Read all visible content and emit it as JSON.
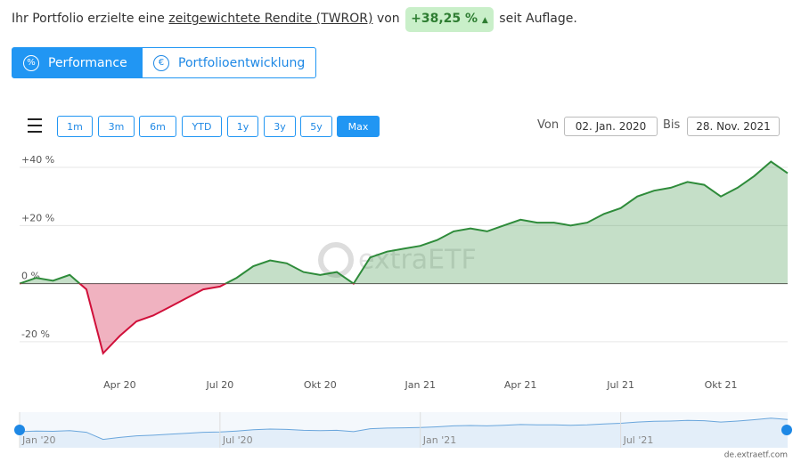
{
  "header": {
    "text_before": "Ihr Portfolio erzielte eine",
    "link": "zeitgewichtete Rendite (TWROR)",
    "text_mid": "von",
    "return": "+38,25 %",
    "text_after": "seit Auflage."
  },
  "tabs": [
    "Performance",
    "Portfolioentwicklung"
  ],
  "range_buttons": [
    "1m",
    "3m",
    "6m",
    "YTD",
    "1y",
    "3y",
    "5y",
    "Max"
  ],
  "date_range": {
    "from_label": "Von",
    "from": "02. Jan. 2020",
    "to_label": "Bis",
    "to": "28. Nov. 2021"
  },
  "watermark": "extraETF",
  "credit": "de.extraetf.com",
  "navigator": {
    "labels": [
      "Jan '20",
      "Jul '20",
      "Jan '21",
      "Jul '21"
    ]
  },
  "chart_data": {
    "type": "area",
    "categories": [
      null,
      null,
      null,
      null,
      null,
      null,
      "Apr 20",
      null,
      null,
      null,
      null,
      null,
      "Jul 20",
      null,
      null,
      null,
      null,
      null,
      "Okt 20",
      null,
      null,
      null,
      null,
      null,
      "Jan 21",
      null,
      null,
      null,
      null,
      null,
      "Apr 21",
      null,
      null,
      null,
      null,
      null,
      "Jul 21",
      null,
      null,
      null,
      null,
      null,
      "Okt 21",
      null,
      null,
      null,
      null
    ],
    "values": [
      0,
      2,
      1,
      3,
      -2,
      -24,
      -18,
      -13,
      -11,
      -8,
      -5,
      -2,
      -1,
      2,
      6,
      8,
      7,
      4,
      3,
      4,
      0,
      9,
      11,
      12,
      13,
      15,
      18,
      19,
      18,
      20,
      22,
      21,
      21,
      20,
      21,
      24,
      26,
      30,
      32,
      33,
      35,
      34,
      30,
      33,
      37,
      42,
      38
    ],
    "color": "#2e8b3a",
    "negative_color": "#d0103a",
    "ylim": [
      -28,
      44
    ],
    "yticks": [
      {
        "value": -20,
        "label": "-20 %"
      },
      {
        "value": 0,
        "label": "0 %"
      },
      {
        "value": 20,
        "label": "+20 %"
      },
      {
        "value": 40,
        "label": "+40 %"
      }
    ],
    "grid": true
  }
}
